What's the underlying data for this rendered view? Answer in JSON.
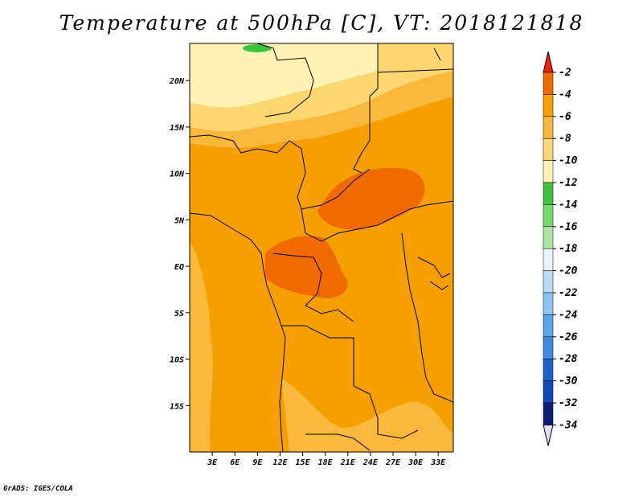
{
  "title": "Temperature at 500hPa [C], VT: 2018121818",
  "credit": "GrADS: IGES/COLA",
  "chart_data": {
    "type": "heatmap",
    "variable": "Temperature at 500hPa",
    "units": "C",
    "valid_time": "2018121818",
    "lon_range": [
      0,
      35
    ],
    "lat_range": [
      -20,
      24
    ],
    "x_ticks": [
      {
        "lon": 3,
        "label": "3E"
      },
      {
        "lon": 6,
        "label": "6E"
      },
      {
        "lon": 9,
        "label": "9E"
      },
      {
        "lon": 12,
        "label": "12E"
      },
      {
        "lon": 15,
        "label": "15E"
      },
      {
        "lon": 18,
        "label": "18E"
      },
      {
        "lon": 21,
        "label": "21E"
      },
      {
        "lon": 24,
        "label": "24E"
      },
      {
        "lon": 27,
        "label": "27E"
      },
      {
        "lon": 30,
        "label": "30E"
      },
      {
        "lon": 33,
        "label": "33E"
      }
    ],
    "y_ticks": [
      {
        "lat": 20,
        "label": "20N"
      },
      {
        "lat": 15,
        "label": "15N"
      },
      {
        "lat": 10,
        "label": "10N"
      },
      {
        "lat": 5,
        "label": "5N"
      },
      {
        "lat": 0,
        "label": "EQ"
      },
      {
        "lat": -5,
        "label": "5S"
      },
      {
        "lat": -10,
        "label": "10S"
      },
      {
        "lat": -15,
        "label": "15S"
      }
    ],
    "colorbar": {
      "labels": [
        "-2",
        "-4",
        "-6",
        "-8",
        "-10",
        "-12",
        "-14",
        "-16",
        "-18",
        "-20",
        "-22",
        "-24",
        "-26",
        "-28",
        "-30",
        "-32",
        "-34"
      ],
      "colors": [
        "#f01e0a",
        "#f06a00",
        "#f5a000",
        "#f8b83c",
        "#fcd670",
        "#fff3b3",
        "#3cc43c",
        "#72d96e",
        "#a8e6a0",
        "#e6f6ff",
        "#b8dcf8",
        "#8cc4f4",
        "#5aa8ec",
        "#3c8ce0",
        "#1c64d0",
        "#1448b8",
        "#0a1e7a",
        "#e6dcfa"
      ]
    },
    "regions": [
      {
        "name": "north-cold-band",
        "level": "-10 to -8"
      },
      {
        "name": "sahel-band",
        "level": "-8 to -6"
      },
      {
        "name": "central-africa-bulk",
        "level": "-6 to -4"
      },
      {
        "name": "warm-core-central",
        "level": "-4 to -2"
      },
      {
        "name": "green-spot-north",
        "level": "-14 to -12"
      }
    ]
  }
}
